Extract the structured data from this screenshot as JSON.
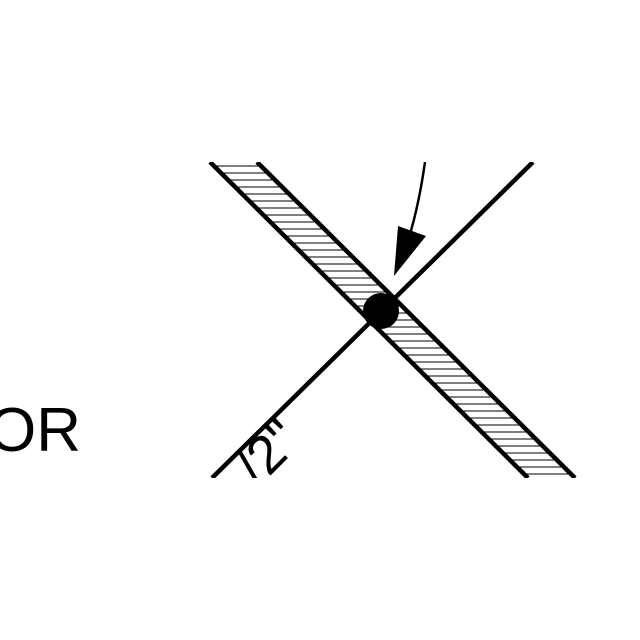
{
  "labels": {
    "left_text": "OR",
    "dimension_text": "/2\""
  },
  "colors": {
    "background": "#ffffff",
    "stroke": "#000000",
    "hatch": "#000000"
  }
}
